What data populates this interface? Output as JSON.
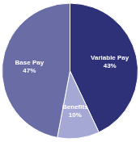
{
  "chart_data": {
    "type": "pie",
    "categories": [
      "Variable Pay",
      "Benefits",
      "Base Pay"
    ],
    "values": [
      43,
      10,
      47
    ],
    "value_labels": [
      "43%",
      "10%",
      "47%"
    ],
    "colors": [
      "#2f3178",
      "#a5a7d4",
      "#6a6ca6"
    ],
    "data_labels": true
  }
}
